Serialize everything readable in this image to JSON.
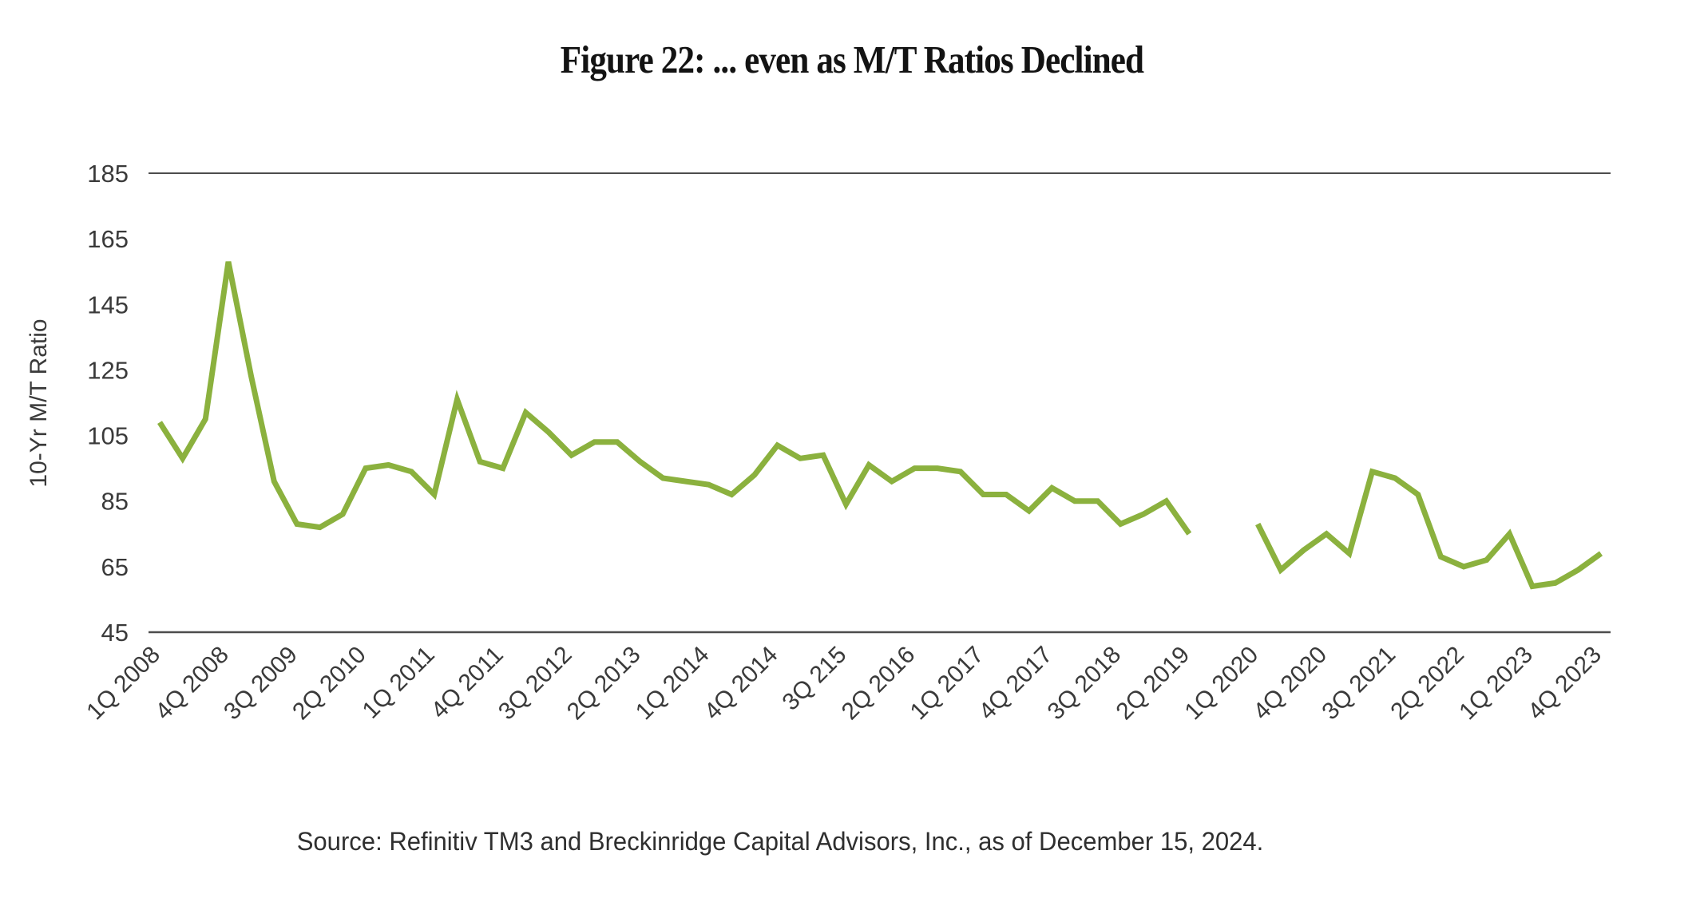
{
  "chart_data": {
    "type": "line",
    "title": "Figure 22: ... even as M/T Ratios Declined",
    "ylabel": "10-Yr M/T Ratio",
    "xlabel": "",
    "source": "Source: Refinitiv TM3 and Breckinridge Capital Advisors, Inc., as of December 15, 2024.",
    "ylim": [
      45,
      185
    ],
    "yticks": [
      185,
      165,
      145,
      125,
      105,
      85,
      65,
      45
    ],
    "grid": "horizontal line at 185 (top) and axis line at 45 (bottom) only; no vertical gridlines; no tick marks",
    "legend_position": "none",
    "x_tick_step": 3,
    "x_tick_labels": [
      "1Q 2008",
      "4Q 2008",
      "3Q 2009",
      "2Q 2010",
      "1Q 2011",
      "4Q 2011",
      "3Q 2012",
      "2Q 2013",
      "1Q 2014",
      "4Q 2014",
      "3Q 215",
      "2Q 2016",
      "1Q 2017",
      "4Q 2017",
      "3Q 2018",
      "2Q 2019",
      "1Q 2020",
      "4Q 2020",
      "3Q 2021",
      "2Q 2022",
      "1Q 2023",
      "4Q 2023"
    ],
    "gap_note": "line breaks (no data) for the two quarters after 2Q 2019, resuming at 1Q 2020",
    "series": [
      {
        "name": "10-Yr M/T Ratio",
        "values": [
          109,
          98,
          110,
          158,
          123,
          91,
          78,
          77,
          81,
          95,
          96,
          94,
          87,
          116,
          97,
          95,
          112,
          106,
          99,
          103,
          103,
          97,
          92,
          91,
          90,
          87,
          93,
          102,
          98,
          99,
          84,
          96,
          91,
          95,
          95,
          94,
          87,
          87,
          82,
          89,
          85,
          85,
          78,
          81,
          85,
          75,
          null,
          null,
          78,
          64,
          70,
          75,
          69,
          94,
          92,
          87,
          68,
          65,
          67,
          75,
          59,
          60,
          64,
          69
        ]
      }
    ]
  },
  "colors": {
    "line": "#8bb13e",
    "axis": "#4d4d4d",
    "tick_text": "#3a3a3a",
    "title_text": "#131313",
    "source_text": "#2f2f2f",
    "background": "#ffffff"
  }
}
